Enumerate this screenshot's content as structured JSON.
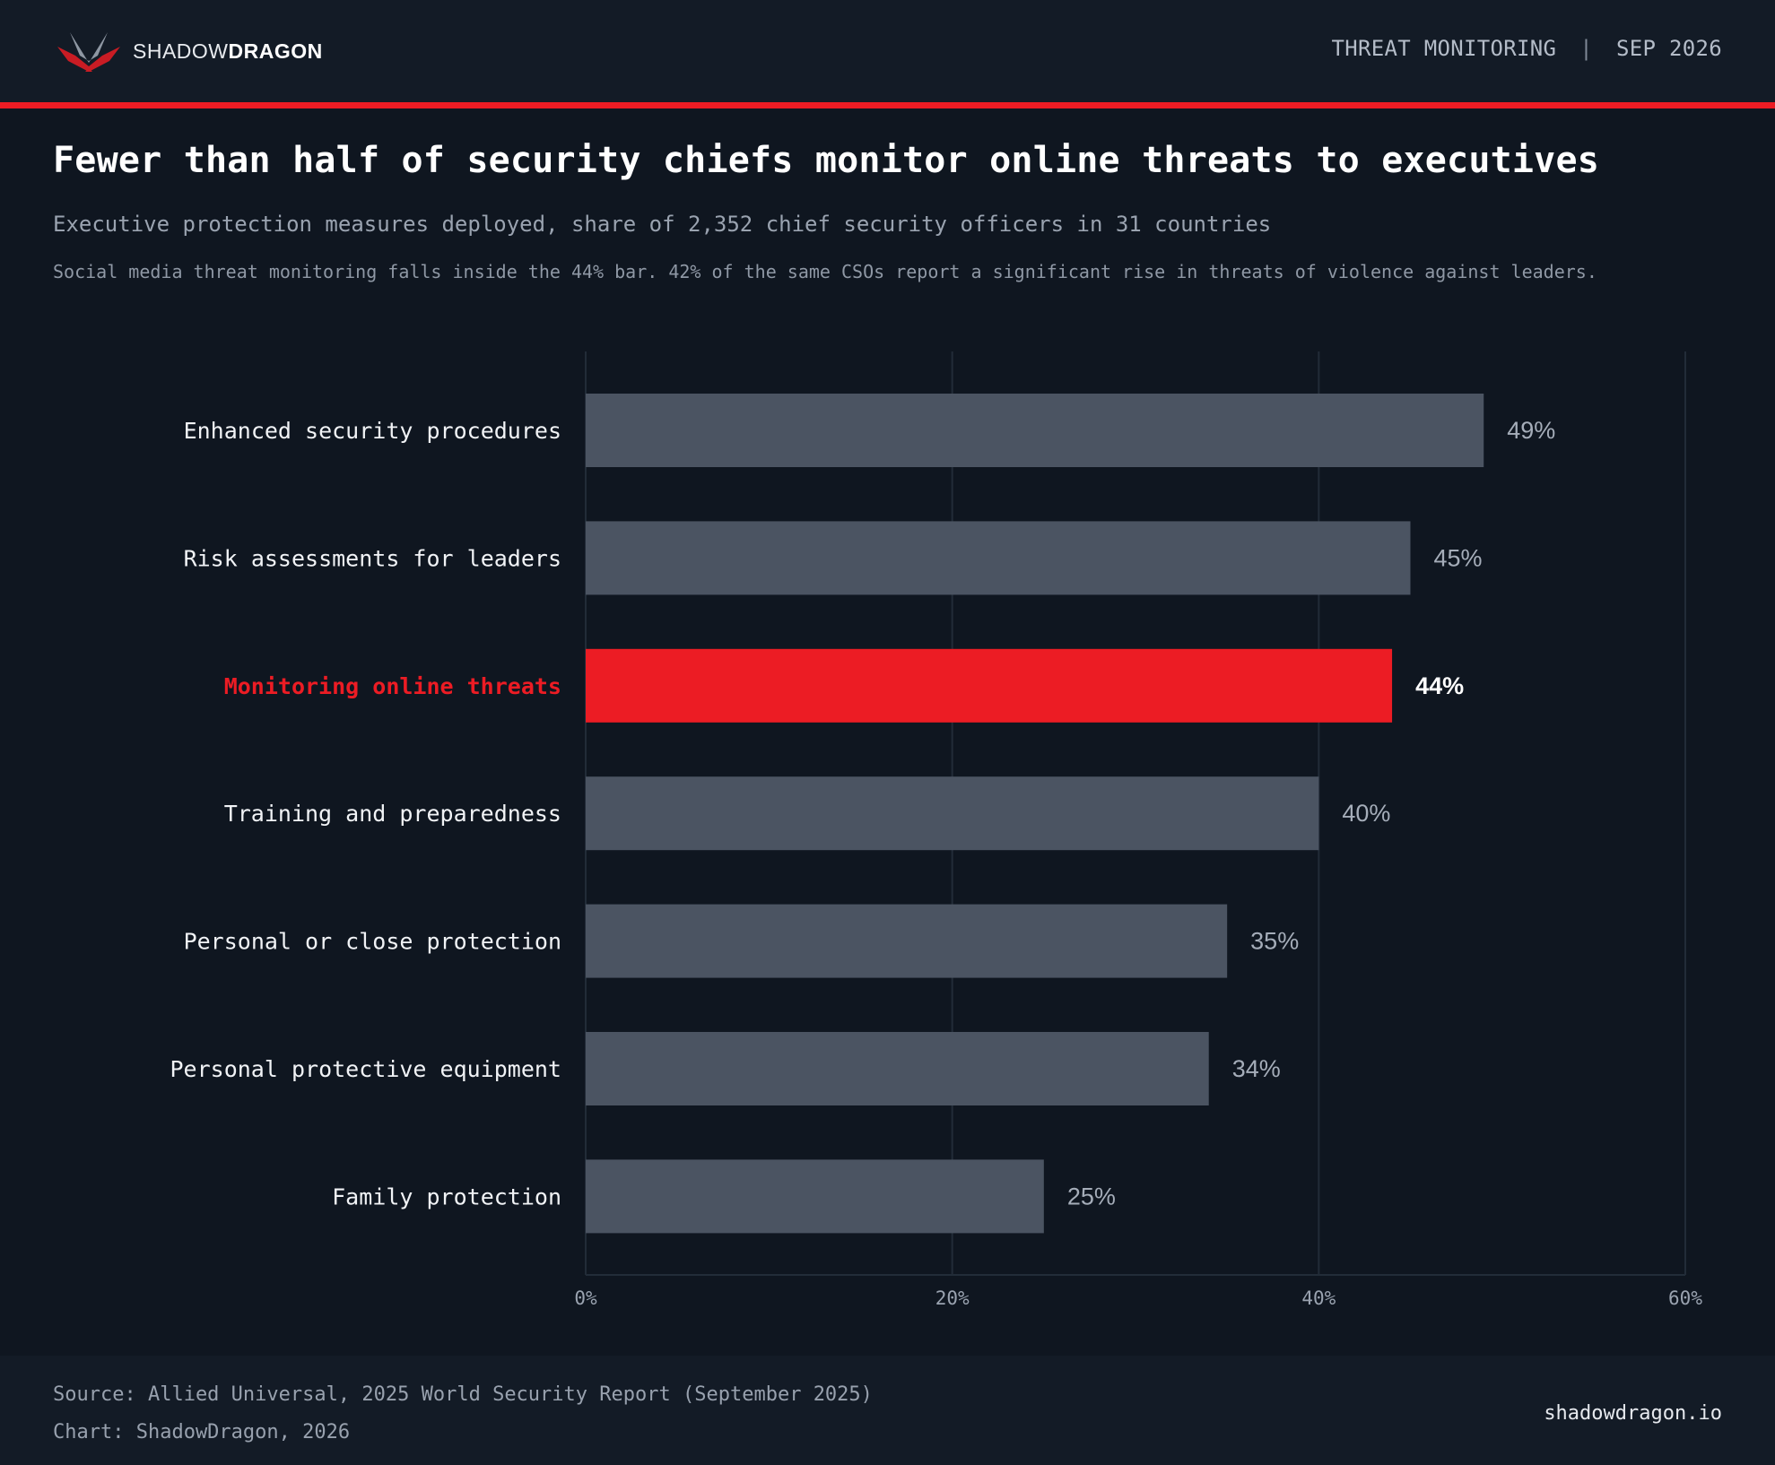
{
  "header": {
    "brand_light": "SHADOW",
    "brand_bold": "DRAGON",
    "section": "THREAT MONITORING",
    "divider": "|",
    "date": "SEP 2026"
  },
  "headline": "Fewer than half of security chiefs monitor online threats to executives",
  "subheadline": "Executive protection measures deployed, share of 2,352 chief security officers in 31 countries",
  "note": "Social media threat monitoring falls inside the 44% bar. 42% of the same CSOs report a significant rise in threats of violence against leaders.",
  "chart_data": {
    "type": "bar",
    "orientation": "horizontal",
    "categories": [
      "Enhanced security procedures",
      "Risk assessments for leaders",
      "Monitoring online threats",
      "Training and preparedness",
      "Personal or close protection",
      "Personal protective equipment",
      "Family protection"
    ],
    "values": [
      49,
      45,
      44,
      40,
      35,
      34,
      25
    ],
    "value_labels": [
      "49%",
      "45%",
      "44%",
      "40%",
      "35%",
      "34%",
      "25%"
    ],
    "highlight": "Monitoring online threats",
    "xlim": [
      0,
      60
    ],
    "ticks": [
      0,
      20,
      40,
      60
    ],
    "tick_labels": [
      "0%",
      "20%",
      "40%",
      "60%"
    ],
    "grid": true,
    "colors": {
      "bar": "#4b5462",
      "highlight": "#ec1c24",
      "label": "#f1f3f6",
      "value": "#a5adb9",
      "grid": "#222c38"
    }
  },
  "footer": {
    "source": "Source: Allied Universal, 2025 World Security Report (September 2025)",
    "credit": "Chart: ShadowDragon, 2026",
    "website": "shadowdragon.io"
  }
}
